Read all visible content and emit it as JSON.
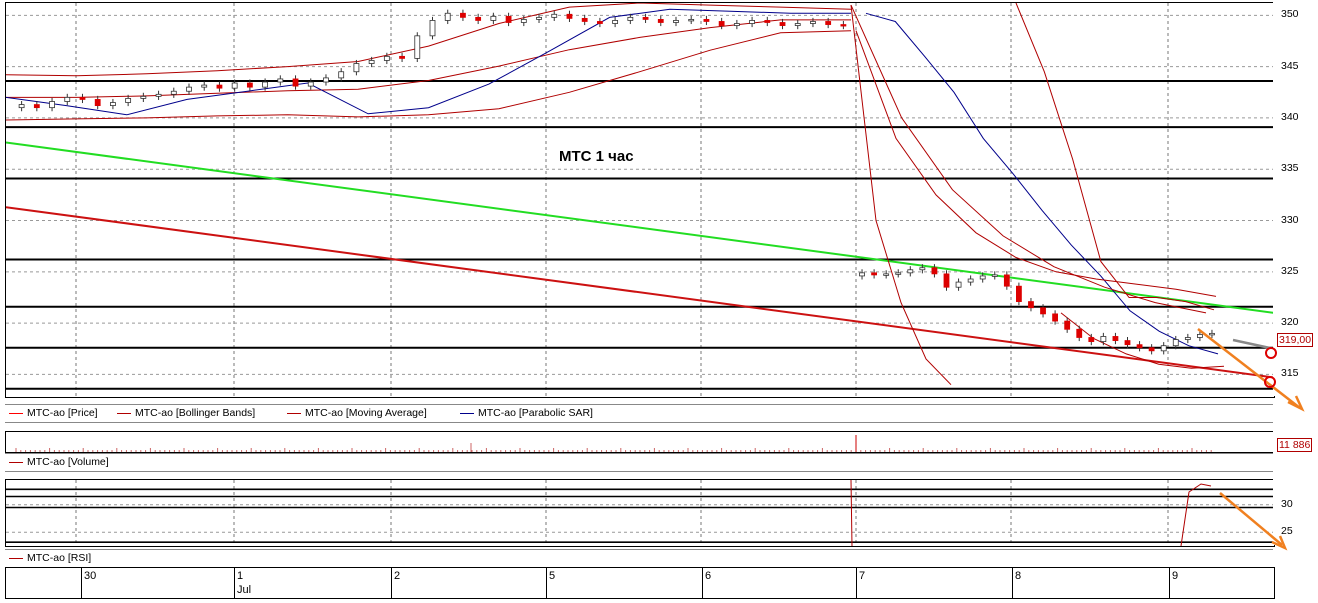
{
  "chart_data": {
    "type": "candlestick",
    "title": "МТС   1 час",
    "y_axis": {
      "ticks": [
        350,
        345,
        340,
        335,
        330,
        325,
        320,
        315
      ],
      "range": [
        312.8,
        351.2
      ]
    },
    "last_price_label": "319,00",
    "legend": [
      {
        "label": "MTC-ao [Price]",
        "color": "#ff0000"
      },
      {
        "label": "MTC-ao [Bollinger Bands]",
        "color": "#b00000"
      },
      {
        "label": "MTC-ao [Moving Average]",
        "color": "#b00000"
      },
      {
        "label": "MTC-ao [Parabolic SAR]",
        "color": "#00008b"
      }
    ],
    "horizontal_levels": [
      343.6,
      339.1,
      334.1,
      326.2,
      321.6,
      317.6,
      313.6
    ],
    "trendlines": [
      {
        "name": "green",
        "color": "#22dd22",
        "from": [
          0,
          337.6
        ],
        "to": [
          1,
          321.0
        ]
      },
      {
        "name": "red",
        "color": "#cc1111",
        "from": [
          0,
          331.3
        ],
        "to": [
          1,
          314.7
        ]
      }
    ],
    "volume": {
      "label": "MTC-ao [Volume]",
      "last_value": "11 886"
    },
    "rsi": {
      "label": "MTC-ao [RSI]",
      "ticks": [
        30,
        25
      ],
      "range": [
        22.5,
        34.5
      ],
      "levels": [
        32.8,
        31.5,
        29.5,
        23.2
      ]
    },
    "x_axis": {
      "dates": [
        "30",
        "1",
        "2",
        "5",
        "6",
        "7",
        "8",
        "9"
      ],
      "month": "Jul"
    },
    "candles_jul2_6": [
      341.3,
      341.0,
      341.6,
      342.0,
      341.8,
      341.2,
      341.5,
      341.9,
      342.1,
      342.3,
      342.6,
      343.0,
      343.2,
      342.9,
      343.4,
      343.0,
      343.5,
      343.8,
      343.1,
      343.5,
      343.9,
      344.5,
      345.3,
      345.6,
      346.0,
      345.8,
      348.0,
      349.5,
      350.2,
      349.8,
      349.5,
      349.9,
      349.3,
      349.6,
      349.8,
      350.1,
      349.7,
      349.4,
      349.2,
      349.5,
      349.8,
      349.6,
      349.3,
      349.5,
      349.6,
      349.4,
      349.0,
      349.2,
      349.5,
      349.3,
      349.0,
      349.2,
      349.4,
      349.1,
      349.0
    ],
    "candles_jul7_9": [
      324.9,
      324.7,
      324.8,
      324.9,
      325.2,
      325.4,
      324.8,
      323.5,
      324.0,
      324.3,
      324.6,
      324.7,
      323.6,
      322.1,
      321.5,
      320.9,
      320.2,
      319.4,
      318.6,
      318.2,
      318.7,
      318.3,
      317.9,
      317.6,
      317.3,
      317.8,
      318.4,
      318.6,
      318.9,
      319.0
    ],
    "bollinger_upper": [
      344.2,
      344.1,
      344.3,
      344.6,
      345.0,
      345.5,
      347.0,
      349.2,
      350.8,
      351.2,
      351.0,
      350.8,
      350.6
    ],
    "bollinger_lower": [
      339.8,
      339.9,
      340.0,
      340.2,
      340.3,
      340.1,
      340.3,
      340.9,
      342.5,
      344.5,
      346.6,
      348.3,
      348.5
    ]
  }
}
